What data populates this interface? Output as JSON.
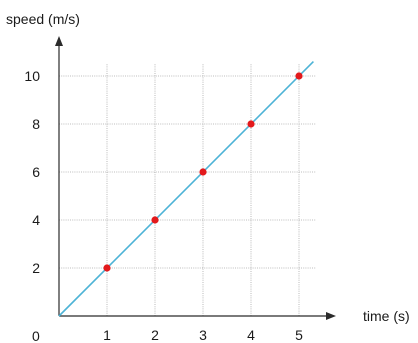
{
  "chart_data": {
    "type": "line",
    "xlabel": "time (s)",
    "ylabel": "speed (m/s)",
    "origin_label": "0",
    "x_ticks": [
      "1",
      "2",
      "3",
      "4",
      "5"
    ],
    "y_ticks": [
      "2",
      "4",
      "6",
      "8",
      "10"
    ],
    "xlim": [
      0,
      5.3
    ],
    "ylim": [
      0,
      10.5
    ],
    "grid": true,
    "series": [
      {
        "x": [
          1,
          2,
          3,
          4,
          5
        ],
        "y": [
          2,
          4,
          6,
          8,
          10
        ],
        "line_color": "#4db3d6",
        "marker_color": "#e3191c"
      }
    ]
  }
}
